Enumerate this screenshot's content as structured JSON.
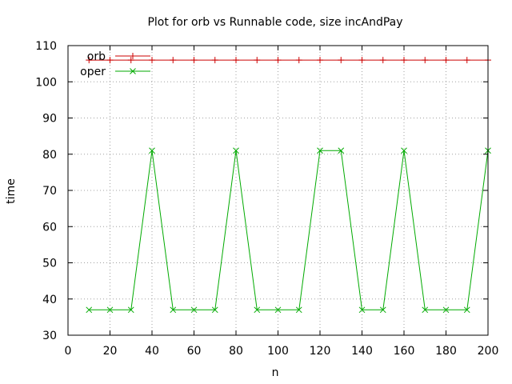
{
  "chart_data": {
    "type": "line",
    "title": "Plot for orb vs Runnable code, size incAndPay",
    "xlabel": "n",
    "ylabel": "time",
    "xlim": [
      0,
      200
    ],
    "ylim": [
      30,
      110
    ],
    "xticks": [
      0,
      20,
      40,
      60,
      80,
      100,
      120,
      140,
      160,
      180,
      200
    ],
    "yticks": [
      30,
      40,
      50,
      60,
      70,
      80,
      90,
      100,
      110
    ],
    "grid": true,
    "legend_position": "top-left",
    "series": [
      {
        "name": "orb",
        "color": "#cc0000",
        "marker": "plus",
        "x": [
          10,
          20,
          30,
          40,
          50,
          60,
          70,
          80,
          90,
          100,
          110,
          120,
          130,
          140,
          150,
          160,
          170,
          180,
          190,
          200
        ],
        "y": [
          106,
          106,
          106,
          106,
          106,
          106,
          106,
          106,
          106,
          106,
          106,
          106,
          106,
          106,
          106,
          106,
          106,
          106,
          106,
          106
        ]
      },
      {
        "name": "oper",
        "color": "#00aa00",
        "marker": "x",
        "x": [
          10,
          20,
          30,
          40,
          50,
          60,
          70,
          80,
          90,
          100,
          110,
          120,
          130,
          140,
          150,
          160,
          170,
          180,
          190,
          200
        ],
        "y": [
          37,
          37,
          37,
          81,
          37,
          37,
          37,
          81,
          37,
          37,
          37,
          81,
          81,
          37,
          37,
          81,
          37,
          37,
          37,
          81
        ]
      }
    ]
  }
}
